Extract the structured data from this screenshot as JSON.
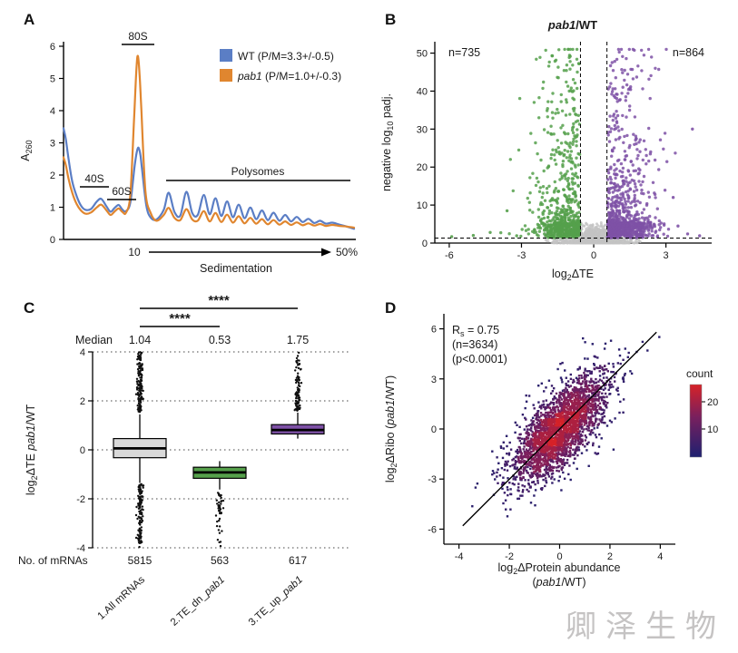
{
  "watermark": "卿泽生物",
  "panel_labels": {
    "a": "A",
    "b": "B",
    "c": "C",
    "d": "D"
  },
  "chart_data": [
    {
      "id": "A",
      "type": "line",
      "ylabel_main": "A",
      "ylabel_sub": "260",
      "xlabel": "Sedimentation",
      "x_start_label": "10",
      "x_end_label": "50%",
      "ylim": [
        0,
        6
      ],
      "yticks": [
        0,
        1,
        2,
        3,
        4,
        5,
        6
      ],
      "legend": [
        {
          "italic": "",
          "text": "WT (P/M=3.3+/-0.5)",
          "color": "#5b7ec5"
        },
        {
          "italic": "pab1",
          "text": " (P/M=1.0+/-0.3)",
          "color": "#e0862f"
        }
      ],
      "annotations": {
        "s40": "40S",
        "s60": "60S",
        "s80": "80S",
        "poly": "Polysomes"
      },
      "series": [
        {
          "name": "WT",
          "color": "#5b7ec5",
          "points": [
            [
              0.0,
              3.45
            ],
            [
              0.008,
              3.1
            ],
            [
              0.018,
              2.45
            ],
            [
              0.03,
              1.8
            ],
            [
              0.045,
              1.35
            ],
            [
              0.06,
              1.05
            ],
            [
              0.075,
              0.92
            ],
            [
              0.095,
              0.95
            ],
            [
              0.115,
              1.18
            ],
            [
              0.13,
              1.26
            ],
            [
              0.148,
              1.02
            ],
            [
              0.162,
              0.86
            ],
            [
              0.176,
              0.98
            ],
            [
              0.19,
              1.07
            ],
            [
              0.203,
              0.92
            ],
            [
              0.215,
              0.88
            ],
            [
              0.23,
              1.15
            ],
            [
              0.245,
              2.3
            ],
            [
              0.252,
              2.7
            ],
            [
              0.258,
              2.85
            ],
            [
              0.265,
              2.6
            ],
            [
              0.27,
              2.2
            ],
            [
              0.285,
              1.05
            ],
            [
              0.3,
              0.68
            ],
            [
              0.32,
              0.62
            ],
            [
              0.345,
              0.92
            ],
            [
              0.362,
              1.45
            ],
            [
              0.382,
              0.85
            ],
            [
              0.402,
              0.74
            ],
            [
              0.423,
              1.48
            ],
            [
              0.443,
              0.82
            ],
            [
              0.462,
              0.76
            ],
            [
              0.483,
              1.38
            ],
            [
              0.503,
              0.78
            ],
            [
              0.523,
              1.28
            ],
            [
              0.543,
              0.73
            ],
            [
              0.563,
              1.18
            ],
            [
              0.583,
              0.69
            ],
            [
              0.603,
              1.08
            ],
            [
              0.623,
              0.66
            ],
            [
              0.643,
              0.99
            ],
            [
              0.663,
              0.63
            ],
            [
              0.683,
              0.9
            ],
            [
              0.703,
              0.6
            ],
            [
              0.723,
              0.83
            ],
            [
              0.743,
              0.58
            ],
            [
              0.763,
              0.76
            ],
            [
              0.783,
              0.56
            ],
            [
              0.803,
              0.7
            ],
            [
              0.823,
              0.54
            ],
            [
              0.843,
              0.64
            ],
            [
              0.863,
              0.51
            ],
            [
              0.883,
              0.58
            ],
            [
              0.903,
              0.49
            ],
            [
              0.925,
              0.52
            ],
            [
              0.95,
              0.46
            ],
            [
              0.975,
              0.4
            ],
            [
              1.0,
              0.33
            ]
          ]
        },
        {
          "name": "pab1",
          "color": "#e0862f",
          "points": [
            [
              0.0,
              2.55
            ],
            [
              0.008,
              2.3
            ],
            [
              0.018,
              1.85
            ],
            [
              0.03,
              1.45
            ],
            [
              0.045,
              1.1
            ],
            [
              0.06,
              0.9
            ],
            [
              0.075,
              0.8
            ],
            [
              0.095,
              0.84
            ],
            [
              0.115,
              1.0
            ],
            [
              0.13,
              1.08
            ],
            [
              0.148,
              0.9
            ],
            [
              0.162,
              0.76
            ],
            [
              0.176,
              0.87
            ],
            [
              0.19,
              0.96
            ],
            [
              0.203,
              0.85
            ],
            [
              0.215,
              0.83
            ],
            [
              0.23,
              1.4
            ],
            [
              0.243,
              3.8
            ],
            [
              0.251,
              5.3
            ],
            [
              0.256,
              5.7
            ],
            [
              0.262,
              5.1
            ],
            [
              0.268,
              4.0
            ],
            [
              0.282,
              1.5
            ],
            [
              0.3,
              0.82
            ],
            [
              0.32,
              0.58
            ],
            [
              0.345,
              0.76
            ],
            [
              0.362,
              0.98
            ],
            [
              0.382,
              0.67
            ],
            [
              0.402,
              0.6
            ],
            [
              0.423,
              0.94
            ],
            [
              0.443,
              0.62
            ],
            [
              0.462,
              0.58
            ],
            [
              0.483,
              0.88
            ],
            [
              0.503,
              0.56
            ],
            [
              0.523,
              0.82
            ],
            [
              0.543,
              0.54
            ],
            [
              0.563,
              0.77
            ],
            [
              0.583,
              0.52
            ],
            [
              0.603,
              0.72
            ],
            [
              0.623,
              0.5
            ],
            [
              0.643,
              0.67
            ],
            [
              0.663,
              0.49
            ],
            [
              0.683,
              0.63
            ],
            [
              0.703,
              0.47
            ],
            [
              0.723,
              0.6
            ],
            [
              0.743,
              0.46
            ],
            [
              0.763,
              0.56
            ],
            [
              0.783,
              0.45
            ],
            [
              0.803,
              0.53
            ],
            [
              0.823,
              0.44
            ],
            [
              0.843,
              0.5
            ],
            [
              0.863,
              0.43
            ],
            [
              0.883,
              0.48
            ],
            [
              0.903,
              0.42
            ],
            [
              0.925,
              0.45
            ],
            [
              0.95,
              0.42
            ],
            [
              0.975,
              0.4
            ],
            [
              1.0,
              0.37
            ]
          ]
        }
      ]
    },
    {
      "id": "B",
      "type": "scatter",
      "title_italic": "pab1",
      "title_rest": "/WT",
      "xlabel_parts": {
        "pre": "log",
        "sub": "2",
        "post": "ΔTE"
      },
      "ylabel_parts": {
        "pre": "negative log",
        "sub": "10",
        "post": " padj."
      },
      "xlim": [
        -6.6,
        4.9
      ],
      "ylim": [
        0,
        53
      ],
      "xticks": [
        -6,
        -3,
        0,
        3
      ],
      "yticks": [
        0,
        10,
        20,
        30,
        40,
        50
      ],
      "thresholds": {
        "x_low": -0.55,
        "x_high": 0.55,
        "y": 1.3
      },
      "groups": {
        "down": {
          "label": "n=735",
          "n": 735,
          "color": "#55a04b"
        },
        "up": {
          "label": "n=864",
          "n": 864,
          "color": "#7e51a6"
        },
        "ns": {
          "n": 1400,
          "color": "#c3c3c3"
        }
      },
      "extra_down": [
        [
          -4.3,
          2.8
        ],
        [
          -5.0,
          2.0
        ],
        [
          -5.9,
          1.7
        ],
        [
          -3.6,
          8.5
        ],
        [
          -3.2,
          1.9
        ]
      ],
      "extra_up": [
        [
          3.5,
          4.5
        ],
        [
          3.9,
          2.4
        ],
        [
          4.4,
          1.9
        ],
        [
          3.3,
          12
        ],
        [
          4.1,
          30
        ]
      ],
      "seed": 12345
    },
    {
      "id": "C",
      "type": "box",
      "ylabel_parts": {
        "pre": "log",
        "sub": "2",
        "mid": "ΔTE ",
        "italic": "pab1",
        "post": "/WT"
      },
      "ylim": [
        -4,
        4
      ],
      "yticks": [
        -4,
        -2,
        0,
        2,
        4
      ],
      "median_row": {
        "label": "Median",
        "values": [
          "1.04",
          "0.53",
          "1.75"
        ]
      },
      "counts_row": {
        "label": "No. of mRNAs",
        "values": [
          "5815",
          "563",
          "617"
        ]
      },
      "significance": [
        {
          "pair": "1-3",
          "stars": "****"
        },
        {
          "pair": "1-2",
          "stars": "****"
        }
      ],
      "categories": [
        {
          "label_pre": "1.All mRNAs",
          "label_italic": "",
          "color": "#d9d9d9",
          "median": 0.06,
          "q1": -0.32,
          "q3": 0.46,
          "whisker_low": -1.35,
          "whisker_high": 1.45,
          "outliers": [
            {
              "from": 1.5,
              "to": 4.0,
              "n": 150
            },
            {
              "from": -4.0,
              "to": -1.4,
              "n": 130
            }
          ]
        },
        {
          "label_pre": "2.TE_dn_",
          "label_italic": "pab1",
          "color": "#55a04b",
          "median": -0.92,
          "q1": -1.16,
          "q3": -0.71,
          "whisker_low": -1.62,
          "whisker_high": -0.46,
          "outliers": [
            {
              "from": -2.7,
              "to": -1.75,
              "n": 32
            },
            {
              "from": -4.0,
              "to": -2.7,
              "n": 12
            }
          ]
        },
        {
          "label_pre": "3.TE_up_",
          "label_italic": "pab1",
          "color": "#7e51a6",
          "median": 0.81,
          "q1": 0.65,
          "q3": 1.03,
          "whisker_low": 0.46,
          "whisker_high": 1.52,
          "outliers": [
            {
              "from": 1.6,
              "to": 2.9,
              "n": 70
            },
            {
              "from": 2.9,
              "to": 4.0,
              "n": 22
            }
          ]
        }
      ],
      "seed": 777
    },
    {
      "id": "D",
      "type": "scatter-density",
      "stats": {
        "r_pre": "R",
        "r_sub": "s",
        "r_post": " = 0.75",
        "n_label": "(n=3634)",
        "p_label": "(p<0.0001)"
      },
      "xlabel_parts": {
        "pre": "log",
        "sub": "2",
        "post": "ΔProtein abundance",
        "line2_pre": "(",
        "line2_italic": "pab1",
        "line2_post": "/WT)"
      },
      "ylabel_parts": {
        "pre": "log",
        "sub": "2",
        "mid": "ΔRibo (",
        "italic": "pab1",
        "post": "/WT)"
      },
      "xlim": [
        -4.6,
        4.6
      ],
      "ylim": [
        -6.9,
        6.9
      ],
      "xticks": [
        -4,
        -2,
        0,
        2,
        4
      ],
      "yticks": [
        -6,
        -3,
        0,
        3,
        6
      ],
      "n_points": 3634,
      "fit_line": {
        "x1": -3.85,
        "y1": -5.8,
        "x2": 3.85,
        "y2": 5.8
      },
      "colorbar": {
        "label": "count",
        "ticks": [
          "20",
          "10"
        ],
        "high_color": "#d62228",
        "mid_color": "#78205e",
        "low_color": "#1e2070"
      },
      "seed": 999
    }
  ]
}
